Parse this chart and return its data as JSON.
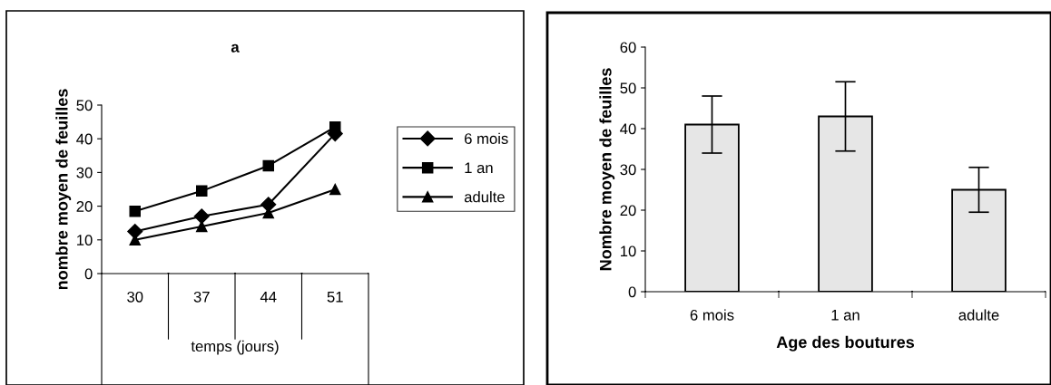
{
  "chart_data": [
    {
      "type": "line",
      "title": "a",
      "xlabel": "temps (jours)",
      "ylabel": "nombre moyen de feuilles",
      "categories": [
        "30",
        "37",
        "44",
        "51"
      ],
      "series": [
        {
          "name": "6 mois",
          "color": "#000000",
          "marker": "diamond",
          "values": [
            12.5,
            17,
            20.5,
            41.5
          ]
        },
        {
          "name": "1 an",
          "color": "#000000",
          "marker": "square",
          "values": [
            18.5,
            24.5,
            32,
            43.5
          ]
        },
        {
          "name": "adulte",
          "color": "#000000",
          "marker": "triangle",
          "values": [
            10,
            14,
            18,
            25
          ]
        }
      ],
      "ylim": [
        0,
        50
      ],
      "yticks": [
        0,
        10,
        20,
        30,
        40,
        50
      ],
      "legend": "right",
      "grid": false
    },
    {
      "type": "bar",
      "xlabel": "Age des boutures",
      "ylabel": "Nombre moyen de feuilles",
      "categories": [
        "6 mois",
        "1 an",
        "adulte"
      ],
      "values": [
        41,
        43,
        25
      ],
      "errors": [
        7,
        8.5,
        5.5
      ],
      "color": "#e6e6e6",
      "ylim": [
        0,
        60
      ],
      "yticks": [
        0,
        10,
        20,
        30,
        40,
        50,
        60
      ],
      "grid": false
    }
  ]
}
